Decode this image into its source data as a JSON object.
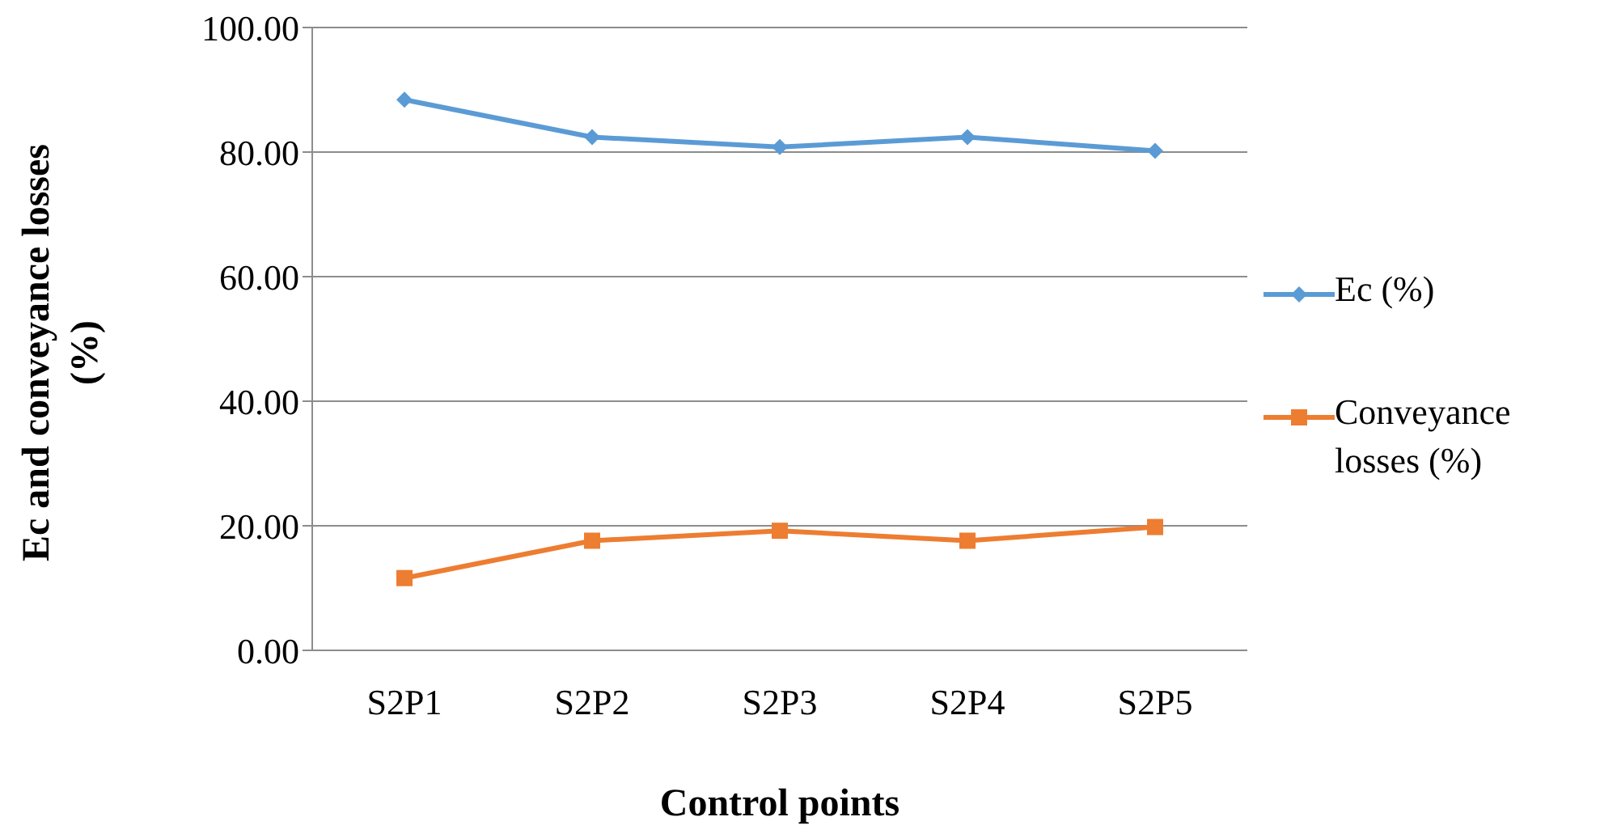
{
  "chart_data": {
    "type": "line",
    "xlabel": "Control points",
    "ylabel": "Ec and conveyance losses (%)",
    "categories": [
      "S2P1",
      "S2P2",
      "S2P3",
      "S2P4",
      "S2P5"
    ],
    "series": [
      {
        "name": "Ec (%)",
        "color": "#5b9bd5",
        "marker": "diamond",
        "values": [
          88.4,
          82.4,
          80.8,
          82.4,
          80.2
        ]
      },
      {
        "name": "Conveyance losses (%)",
        "color": "#ed7d31",
        "marker": "square",
        "values": [
          11.6,
          17.6,
          19.2,
          17.6,
          19.8
        ]
      }
    ],
    "ylim": [
      0,
      100
    ],
    "yticks": [
      {
        "value": 0,
        "label": "0.00"
      },
      {
        "value": 20,
        "label": "20.00"
      },
      {
        "value": 40,
        "label": "40.00"
      },
      {
        "value": 60,
        "label": "60.00"
      },
      {
        "value": 80,
        "label": "80.00"
      },
      {
        "value": 100,
        "label": "100.00"
      }
    ],
    "grid": "y",
    "legend": "right",
    "line_style": "solid"
  }
}
